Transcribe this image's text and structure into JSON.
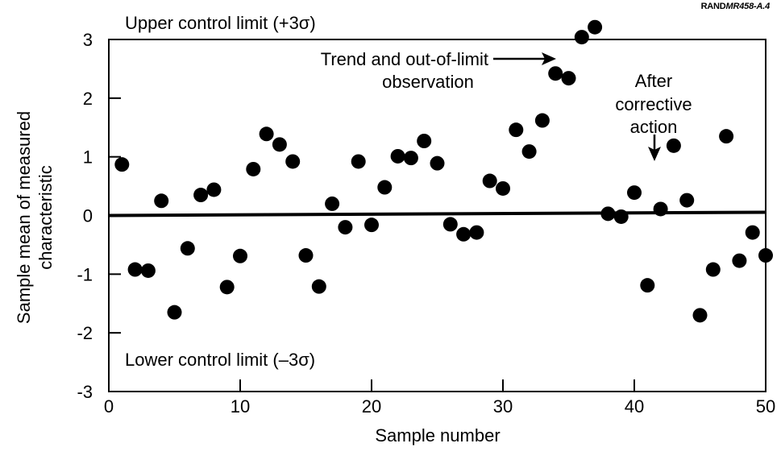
{
  "credit": {
    "prefix": "RAND",
    "id": "MR458-A.4"
  },
  "chart_data": {
    "type": "scatter",
    "xlabel": "Sample number",
    "ylabel_lines": [
      "Sample mean of measured",
      "characteristic"
    ],
    "xlim": [
      0,
      50
    ],
    "ylim": [
      -3,
      3
    ],
    "xticks": [
      0,
      10,
      20,
      30,
      40,
      50
    ],
    "yticks": [
      -3,
      -2,
      -1,
      0,
      1,
      2,
      3
    ],
    "grid": false,
    "center_line": 0,
    "annotations": {
      "upper_limit": "Upper control limit (+3σ)",
      "lower_limit": "Lower control limit (–3σ)",
      "trend_lines": [
        "Trend and out-of-limit",
        "observation"
      ],
      "corrective_lines": [
        "After",
        "corrective",
        "action"
      ]
    },
    "series": [
      {
        "x": [
          1,
          2,
          3,
          4,
          5,
          6,
          7,
          8,
          9,
          10,
          11,
          12,
          13,
          14,
          15,
          16,
          17,
          18,
          19,
          20,
          21,
          22,
          23,
          24,
          25,
          26,
          27,
          28,
          29,
          30,
          31,
          32,
          33,
          34,
          35,
          36,
          37,
          38,
          39,
          40,
          41,
          42,
          43,
          44,
          45,
          46,
          47,
          48,
          49,
          50
        ],
        "y": [
          0.87,
          -0.92,
          -0.94,
          0.25,
          -1.65,
          -0.56,
          0.35,
          0.44,
          -1.22,
          -0.69,
          0.79,
          1.39,
          1.21,
          0.92,
          -0.68,
          -1.21,
          0.2,
          -0.2,
          0.92,
          -0.16,
          0.48,
          1.01,
          0.98,
          1.27,
          0.89,
          -0.15,
          -0.32,
          -0.29,
          0.59,
          0.46,
          1.46,
          1.09,
          1.62,
          2.42,
          2.34,
          3.04,
          3.21,
          0.03,
          -0.02,
          0.39,
          -1.19,
          0.11,
          1.19,
          0.26,
          -1.7,
          -0.92,
          1.35,
          -0.77,
          -0.29,
          -0.68
        ]
      }
    ]
  }
}
